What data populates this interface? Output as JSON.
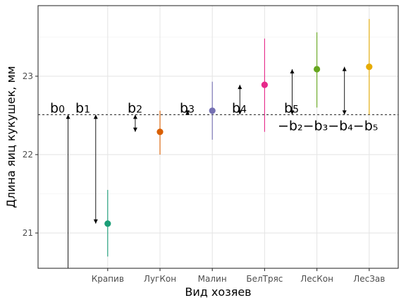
{
  "chart_data": {
    "type": "scatter",
    "title": "",
    "xlabel": "Вид хозяев",
    "ylabel": "Длина яиц кукушек, мм",
    "categories": [
      "Крапив",
      "ЛугКон",
      "Малин",
      "БелТряс",
      "ЛесКон",
      "ЛесЗав"
    ],
    "ylim": [
      20.55,
      23.9
    ],
    "yticks": [
      21,
      22,
      23
    ],
    "grid": true,
    "legend": "none",
    "series": [
      {
        "values": [
          21.12,
          22.29,
          22.56,
          22.89,
          23.09,
          23.12
        ],
        "lower": [
          20.7,
          22.0,
          22.19,
          22.29,
          22.6,
          22.51
        ],
        "upper": [
          21.55,
          22.56,
          22.93,
          23.48,
          23.56,
          23.73
        ],
        "colors": [
          "#1b9e77",
          "#d95f02",
          "#7570b3",
          "#e7298a",
          "#66a61e",
          "#e6ab02"
        ]
      }
    ],
    "reference_line": {
      "y": 22.51,
      "style": "dashed"
    },
    "annotations": [
      {
        "text": "b",
        "sub": "0"
      },
      {
        "text": "b",
        "sub": "1"
      },
      {
        "text": "b",
        "sub": "2"
      },
      {
        "text": "b",
        "sub": "3"
      },
      {
        "text": "b",
        "sub": "4"
      },
      {
        "text": "b",
        "sub": "5"
      },
      {
        "text": "−b₂−b₃−b₄−b₅"
      }
    ]
  }
}
